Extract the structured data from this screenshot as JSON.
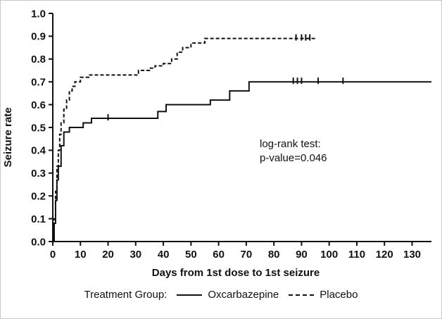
{
  "chart": {
    "ylabel": "Seizure rate",
    "xlabel": "Days from 1st dose to 1st seizure",
    "legend_title": "Treatment Group:",
    "annotation": {
      "line1": "log-rank test:",
      "line2": "p-value=0.046"
    }
  },
  "chart_data": {
    "type": "line",
    "subtype": "kaplan-meier-step",
    "title": "",
    "xlabel": "Days from 1st dose to 1st seizure",
    "ylabel": "Seizure rate",
    "xlim": [
      0,
      137
    ],
    "ylim": [
      0,
      1.0
    ],
    "xticks": [
      0,
      10,
      20,
      30,
      40,
      50,
      60,
      70,
      80,
      90,
      100,
      110,
      120,
      130
    ],
    "yticks": [
      0.0,
      0.1,
      0.2,
      0.3,
      0.4,
      0.5,
      0.6,
      0.7,
      0.8,
      0.9,
      1.0
    ],
    "grid": false,
    "legend_position": "bottom",
    "annotation": "log-rank test: p-value=0.046",
    "line_color": "#111111",
    "series": [
      {
        "name": "Oxcarbazepine",
        "style": "solid",
        "points": [
          [
            0,
            0
          ],
          [
            0.5,
            0.08
          ],
          [
            1,
            0.18
          ],
          [
            1.5,
            0.27
          ],
          [
            2,
            0.33
          ],
          [
            3,
            0.42
          ],
          [
            4,
            0.48
          ],
          [
            6,
            0.5
          ],
          [
            11,
            0.52
          ],
          [
            14,
            0.54
          ],
          [
            38,
            0.57
          ],
          [
            41,
            0.6
          ],
          [
            57,
            0.62
          ],
          [
            64,
            0.66
          ],
          [
            71,
            0.7
          ],
          [
            137,
            0.7
          ]
        ],
        "censors": [
          [
            20,
            0.54
          ],
          [
            87,
            0.7
          ],
          [
            88.5,
            0.7
          ],
          [
            90,
            0.7
          ],
          [
            96,
            0.7
          ],
          [
            105,
            0.7
          ]
        ]
      },
      {
        "name": "Placebo",
        "style": "dashed",
        "points": [
          [
            0,
            0
          ],
          [
            0.5,
            0.1
          ],
          [
            1,
            0.22
          ],
          [
            1.5,
            0.33
          ],
          [
            2,
            0.4
          ],
          [
            2.5,
            0.47
          ],
          [
            3,
            0.52
          ],
          [
            4,
            0.58
          ],
          [
            5,
            0.62
          ],
          [
            6,
            0.66
          ],
          [
            7,
            0.68
          ],
          [
            8,
            0.7
          ],
          [
            10,
            0.72
          ],
          [
            13,
            0.73
          ],
          [
            31,
            0.75
          ],
          [
            35,
            0.76
          ],
          [
            37,
            0.77
          ],
          [
            40,
            0.78
          ],
          [
            43,
            0.8
          ],
          [
            45,
            0.83
          ],
          [
            47,
            0.85
          ],
          [
            50,
            0.87
          ],
          [
            55,
            0.89
          ],
          [
            95,
            0.89
          ]
        ],
        "censors": [
          [
            88,
            0.89
          ],
          [
            90,
            0.89
          ],
          [
            91.5,
            0.89
          ],
          [
            93,
            0.89
          ]
        ]
      }
    ]
  }
}
